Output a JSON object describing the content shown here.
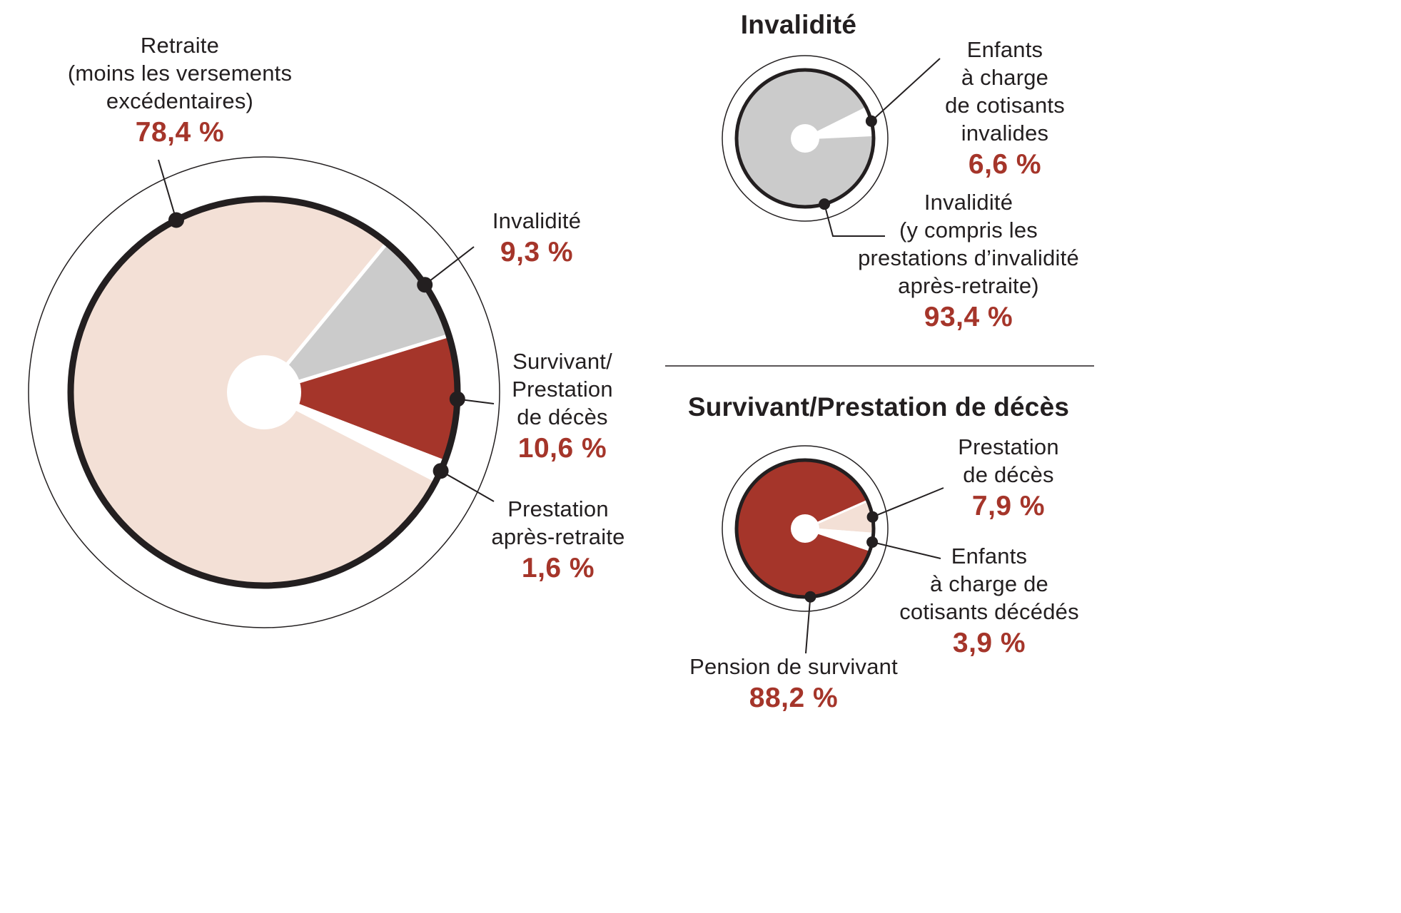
{
  "palette": {
    "black": "#231f20",
    "red": "#a5352a",
    "pink": "#f3e0d6",
    "gray": "#cbcbcb",
    "white": "#ffffff"
  },
  "chart_data": [
    {
      "id": "repartition-principale",
      "type": "pie",
      "title": "",
      "unit": "%",
      "slices": [
        {
          "label": "Retraite (moins les versements excédentaires)",
          "value": 78.4,
          "display": "78,4 %",
          "color": "pink"
        },
        {
          "label": "Invalidité",
          "value": 9.3,
          "display": "9,3 %",
          "color": "gray"
        },
        {
          "label": "Survivant/Prestation de décès",
          "value": 10.6,
          "display": "10,6 %",
          "color": "red"
        },
        {
          "label": "Prestation après-retraite",
          "value": 1.6,
          "display": "1,6 %",
          "color": "white"
        }
      ]
    },
    {
      "id": "invalidite",
      "type": "pie",
      "title": "Invalidité",
      "unit": "%",
      "slices": [
        {
          "label": "Enfants à charge de cotisants invalides",
          "value": 6.6,
          "display": "6,6 %",
          "color": "white"
        },
        {
          "label": "Invalidité (y compris les prestations d’invalidité après-retraite)",
          "value": 93.4,
          "display": "93,4 %",
          "color": "gray"
        }
      ]
    },
    {
      "id": "survivant-prestation-deces",
      "type": "pie",
      "title": "Survivant/Prestation de décès",
      "unit": "%",
      "slices": [
        {
          "label": "Prestation de décès",
          "value": 7.9,
          "display": "7,9 %",
          "color": "pink"
        },
        {
          "label": "Enfants à charge de cotisants décédés",
          "value": 3.9,
          "display": "3,9 %",
          "color": "white"
        },
        {
          "label": "Pension de survivant",
          "value": 88.2,
          "display": "88,2 %",
          "color": "red"
        }
      ]
    }
  ],
  "labels": {
    "main": {
      "retraite": {
        "text": "Retraite\n(moins les versements\nexcédentaires)",
        "pct": "78,4 %"
      },
      "invalidite": {
        "text": "Invalidité",
        "pct": "9,3 %"
      },
      "survivant": {
        "text": "Survivant/\nPrestation\nde décès",
        "pct": "10,6 %"
      },
      "apres_retraite": {
        "text": "Prestation\naprès-retraite",
        "pct": "1,6 %"
      }
    },
    "invalidite": {
      "title": "Invalidité",
      "enfants": {
        "text": "Enfants\nà charge\nde cotisants\ninvalides",
        "pct": "6,6 %"
      },
      "principal": {
        "text": "Invalidité\n(y compris les\nprestations d’invalidité\naprès-retraite)",
        "pct": "93,4 %"
      }
    },
    "survivant": {
      "title": "Survivant/Prestation de décès",
      "deces": {
        "text": "Prestation\nde décès",
        "pct": "7,9 %"
      },
      "enfants": {
        "text": "Enfants\nà charge de\ncotisants décédés",
        "pct": "3,9 %"
      },
      "pension": {
        "text": "Pension de survivant",
        "pct": "88,2 %"
      }
    }
  }
}
